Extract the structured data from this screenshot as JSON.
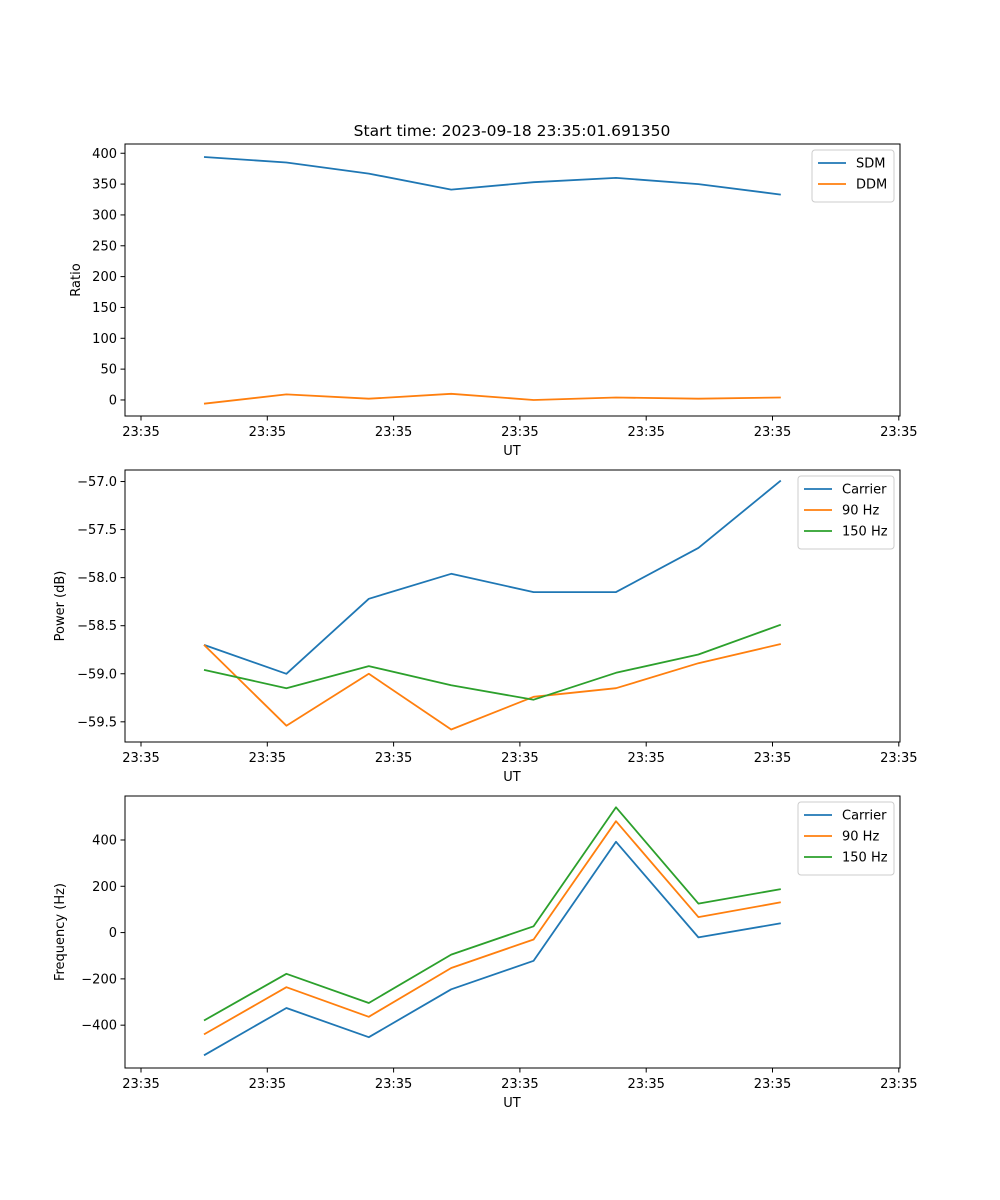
{
  "figure": {
    "title": "Start time: 2023-09-18 23:35:01.691350"
  },
  "colors": {
    "blue": "#1f77b4",
    "orange": "#ff7f0e",
    "green": "#2ca02c"
  },
  "chart_data": [
    {
      "type": "line",
      "title": "Start time: 2023-09-18 23:35:01.691350",
      "xlabel": "UT",
      "ylabel": "Ratio",
      "x_tick_labels": [
        "23:35",
        "23:35",
        "23:35",
        "23:35",
        "23:35",
        "23:35",
        "23:35"
      ],
      "y_ticks": [
        0,
        50,
        100,
        150,
        200,
        250,
        300,
        350,
        400
      ],
      "y_tick_labels": [
        "0",
        "50",
        "100",
        "150",
        "200",
        "250",
        "300",
        "350",
        "400"
      ],
      "ylim": [
        -26,
        415
      ],
      "legend": "top-right",
      "x": [
        1,
        2,
        3,
        4,
        5,
        6,
        7,
        8
      ],
      "series": [
        {
          "name": "SDM",
          "color": "#1f77b4",
          "values": [
            394,
            385,
            367,
            341,
            353,
            360,
            350,
            333
          ]
        },
        {
          "name": "DDM",
          "color": "#ff7f0e",
          "values": [
            -6,
            9,
            2,
            10,
            0,
            4,
            2,
            4
          ]
        }
      ]
    },
    {
      "type": "line",
      "title": "",
      "xlabel": "UT",
      "ylabel": "Power (dB)",
      "x_tick_labels": [
        "23:35",
        "23:35",
        "23:35",
        "23:35",
        "23:35",
        "23:35",
        "23:35"
      ],
      "y_ticks": [
        -59.5,
        -59.0,
        -58.5,
        -58.0,
        -57.5,
        -57.0
      ],
      "y_tick_labels": [
        "−59.5",
        "−59.0",
        "−58.5",
        "−58.0",
        "−57.5",
        "−57.0"
      ],
      "ylim": [
        -59.71,
        -56.88
      ],
      "legend": "top-right",
      "x": [
        1,
        2,
        3,
        4,
        5,
        6,
        7,
        8
      ],
      "series": [
        {
          "name": "Carrier",
          "color": "#1f77b4",
          "values": [
            -58.7,
            -59.0,
            -58.22,
            -57.96,
            -58.15,
            -58.15,
            -57.69,
            -56.99
          ]
        },
        {
          "name": "90 Hz",
          "color": "#ff7f0e",
          "values": [
            -58.7,
            -59.54,
            -59.0,
            -59.58,
            -59.24,
            -59.15,
            -58.89,
            -58.69
          ]
        },
        {
          "name": "150 Hz",
          "color": "#2ca02c",
          "values": [
            -58.96,
            -59.15,
            -58.92,
            -59.12,
            -59.27,
            -58.99,
            -58.8,
            -58.49
          ]
        }
      ]
    },
    {
      "type": "line",
      "title": "",
      "xlabel": "UT",
      "ylabel": "Frequency (Hz)",
      "x_tick_labels": [
        "23:35",
        "23:35",
        "23:35",
        "23:35",
        "23:35",
        "23:35",
        "23:35"
      ],
      "y_ticks": [
        -400,
        -200,
        0,
        200,
        400
      ],
      "y_tick_labels": [
        "−400",
        "−200",
        "0",
        "200",
        "400"
      ],
      "ylim": [
        -585,
        590
      ],
      "legend": "top-right",
      "x": [
        1,
        2,
        3,
        4,
        5,
        6,
        7,
        8
      ],
      "series": [
        {
          "name": "Carrier",
          "color": "#1f77b4",
          "values": [
            -530,
            -326,
            -452,
            -245,
            -122,
            392,
            -21,
            40
          ]
        },
        {
          "name": "90 Hz",
          "color": "#ff7f0e",
          "values": [
            -440,
            -236,
            -364,
            -153,
            -30,
            481,
            67,
            131
          ]
        },
        {
          "name": "150 Hz",
          "color": "#2ca02c",
          "values": [
            -380,
            -178,
            -304,
            -95,
            27,
            541,
            125,
            188
          ]
        }
      ]
    }
  ]
}
